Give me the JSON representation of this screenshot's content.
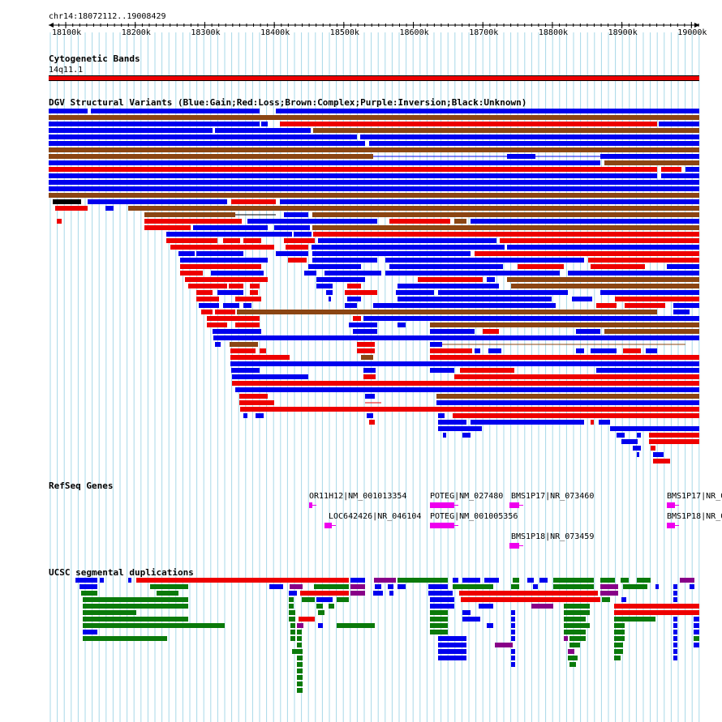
{
  "colors": {
    "gain": "#0000ee",
    "loss": "#ee0000",
    "complex": "#8b4513",
    "inversion": "#880088",
    "unknown": "#000000",
    "grid_line": "#a8d8e8",
    "refseq": "#ee00ee",
    "dup_red": "#ee0000",
    "dup_blue": "#0000ee",
    "dup_green": "#0a7a0a",
    "dup_purple": "#880088"
  },
  "ruler": {
    "region_label": "chr14:18072112..19008429",
    "ticks": [
      "18100k",
      "18200k",
      "18300k",
      "18400k",
      "18500k",
      "18600k",
      "18700k",
      "18800k",
      "18900k",
      "19000k"
    ]
  },
  "cytoband": {
    "title": "Cytogenetic Bands",
    "band_label": "14q11.1"
  },
  "dgv": {
    "title": "DGV Structural Variants (Blue:Gain;Red:Loss;Brown:Complex;Purple:Inversion;Black:Unknown)"
  },
  "refseq": {
    "title": "RefSeq Genes",
    "genes": [
      {
        "label": "OR11H12|NM_001013354",
        "icon": "gene-arrow-right"
      },
      {
        "label": "LOC642426|NR_046104",
        "icon": "gene-arrow-left"
      },
      {
        "label": "POTEG|NM_027480",
        "icon": "gene-arrow-right"
      },
      {
        "label": "POTEG|NM_001005356",
        "icon": "gene-arrow-right"
      },
      {
        "label": "BMS1P17|NR_073460",
        "icon": "gene-arrow-left"
      },
      {
        "label": "BMS1P18|NR_073459",
        "icon": "gene-arrow-left"
      },
      {
        "label": "BMS1P17|NR_0",
        "icon": "gene-arrow-right"
      },
      {
        "label": "BMS1P18|NR_0",
        "icon": "gene-arrow-right"
      }
    ]
  },
  "segdup": {
    "title": "UCSC segmental duplications"
  }
}
